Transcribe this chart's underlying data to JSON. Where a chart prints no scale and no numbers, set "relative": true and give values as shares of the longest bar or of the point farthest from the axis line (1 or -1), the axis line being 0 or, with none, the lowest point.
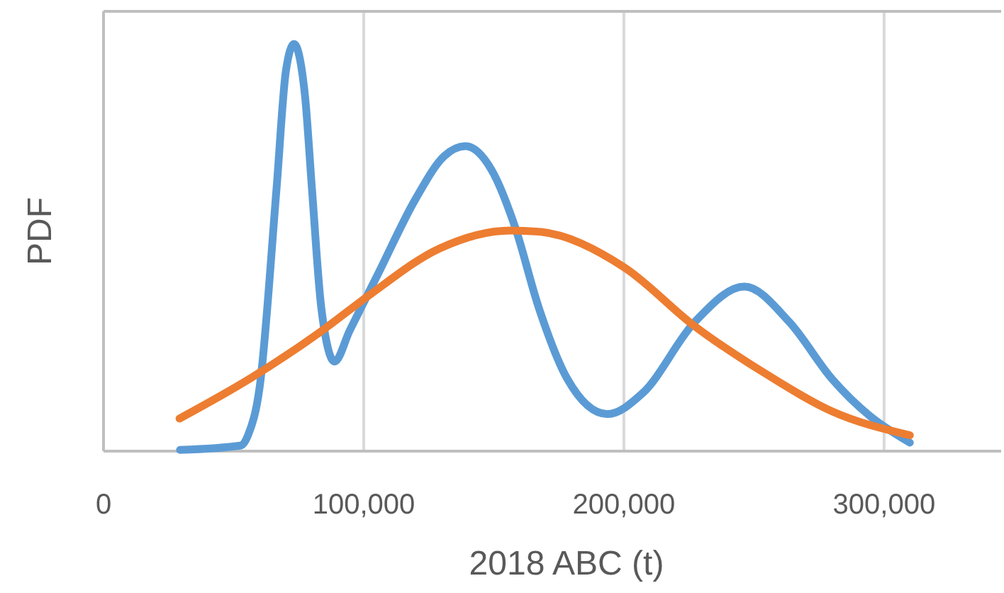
{
  "chart_data": {
    "type": "line",
    "relative": true,
    "xlabel": "2018 ABC (t)",
    "ylabel": "PDF",
    "xlim": [
      0,
      345000
    ],
    "xticks": [
      0,
      {
        "value": 100000,
        "label": "100,000"
      },
      {
        "value": 200000,
        "label": "200,000"
      },
      {
        "value": 300000,
        "label": "300,000"
      }
    ],
    "grid": "x",
    "marker": "none",
    "line_style": "solid",
    "series": [
      {
        "color": "#5b9bd5",
        "x": [
          29400,
          52900,
          55600,
          60000,
          66500,
          70100,
          73200,
          77400,
          80100,
          83700,
          88800,
          94600,
          105500,
          120000,
          131000,
          139100,
          149200,
          158200,
          167300,
          178200,
          193600,
          207300,
          227200,
          246300,
          263600,
          279900,
          294400,
          309900
        ],
        "values": [
          0.003,
          0.014,
          0.04,
          0.157,
          0.645,
          0.934,
          1,
          0.875,
          0.645,
          0.352,
          0.22,
          0.296,
          0.435,
          0.62,
          0.725,
          0.749,
          0.69,
          0.55,
          0.352,
          0.178,
          0.091,
          0.143,
          0.317,
          0.404,
          0.317,
          0.178,
          0.087,
          0.021
        ]
      },
      {
        "color": "#ed7d31",
        "x": [
          29200,
          56500,
          83800,
          101900,
          129200,
          156400,
          167300,
          200000,
          227200,
          254500,
          279900,
          309900
        ],
        "values": [
          0.08,
          0.179,
          0.295,
          0.382,
          0.498,
          0.542,
          0.539,
          0.452,
          0.307,
          0.19,
          0.098,
          0.039
        ]
      }
    ]
  }
}
